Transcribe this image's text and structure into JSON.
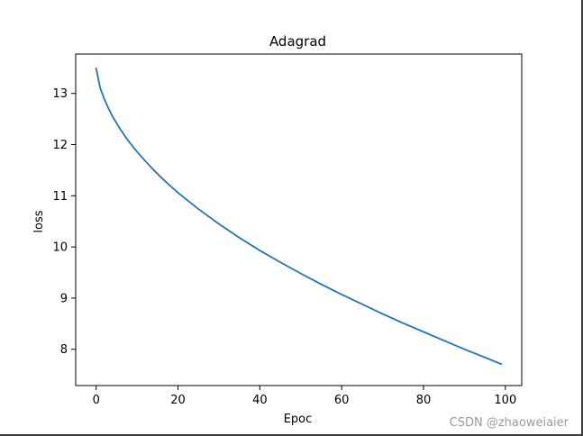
{
  "chart_data": {
    "type": "line",
    "title": "Adagrad",
    "xlabel": "Epoc",
    "ylabel": "loss",
    "xlim": [
      -5,
      104
    ],
    "ylim": [
      7.29,
      13.77
    ],
    "xticks": [
      0,
      20,
      40,
      60,
      80,
      100
    ],
    "yticks": [
      8,
      9,
      10,
      11,
      12,
      13
    ],
    "xtick_labels": [
      "0",
      "20",
      "40",
      "60",
      "80",
      "100"
    ],
    "ytick_labels": [
      "8",
      "9",
      "10",
      "11",
      "12",
      "13"
    ],
    "grid": false,
    "line_color": "#1f77b4",
    "series": [
      {
        "x": [
          0,
          1,
          2,
          3,
          4,
          5,
          6,
          7,
          8,
          9,
          10,
          12,
          14,
          16,
          18,
          20,
          25,
          30,
          35,
          40,
          45,
          50,
          55,
          60,
          65,
          70,
          75,
          80,
          85,
          90,
          95,
          99
        ],
        "values": [
          13.49,
          13.1,
          12.89,
          12.71,
          12.55,
          12.42,
          12.29,
          12.17,
          12.06,
          11.96,
          11.86,
          11.68,
          11.51,
          11.35,
          11.2,
          11.06,
          10.74,
          10.45,
          10.18,
          9.93,
          9.7,
          9.48,
          9.27,
          9.07,
          8.88,
          8.69,
          8.51,
          8.34,
          8.17,
          8.0,
          7.84,
          7.71
        ]
      }
    ]
  },
  "watermark": "CSDN @zhaoweiaier"
}
